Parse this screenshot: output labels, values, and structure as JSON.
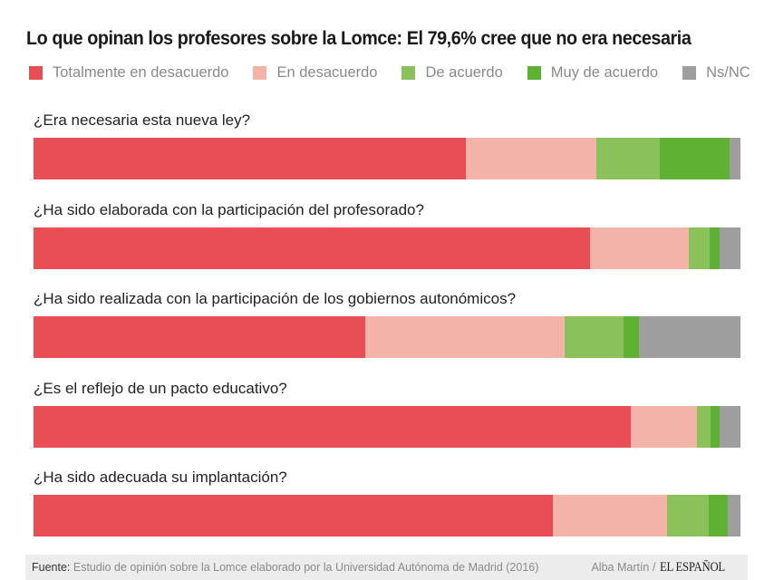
{
  "chart_data": {
    "type": "bar",
    "orientation": "horizontal",
    "stacked": true,
    "normalized": true,
    "title": "Lo que opinan los profesores sobre la Lomce: El 79,6% cree que no era necesaria",
    "xlabel": "",
    "ylabel": "",
    "xlim": [
      0,
      100
    ],
    "grid": false,
    "legend_position": "top-left",
    "categories": [
      "¿Era necesaria esta nueva ley?",
      "¿Ha sido elaborada con la participación del profesorado?",
      "¿Ha sido realizada con la participación de los gobiernos autonómicos?",
      "¿Es el reflejo de un pacto educativo?",
      "¿Ha sido adecuada su implantación?"
    ],
    "series": [
      {
        "name": "Totalmente en desacuerdo",
        "color": "#e84e54",
        "values": [
          61.1,
          78.7,
          46.9,
          84.5,
          73.5
        ]
      },
      {
        "name": "En desacuerdo",
        "color": "#f4b3a8",
        "values": [
          18.5,
          14.0,
          28.2,
          9.4,
          16.1
        ]
      },
      {
        "name": "De acuerdo",
        "color": "#8bc15a",
        "values": [
          9.0,
          3.0,
          8.3,
          1.9,
          5.9
        ]
      },
      {
        "name": "Muy de acuerdo",
        "color": "#5db233",
        "values": [
          9.8,
          1.3,
          2.2,
          1.3,
          2.7
        ]
      },
      {
        "name": "Ns/NC",
        "color": "#9e9e9e",
        "values": [
          1.6,
          3.0,
          14.4,
          2.9,
          1.8
        ]
      }
    ]
  },
  "footer": {
    "source_label": "Fuente:",
    "source_text": "Estudio de opinión sobre la Lomce elaborado por la Universidad Autónoma de Madrid (2016)",
    "author": "Alba Martín /",
    "brand": "EL ESPAÑOL"
  }
}
